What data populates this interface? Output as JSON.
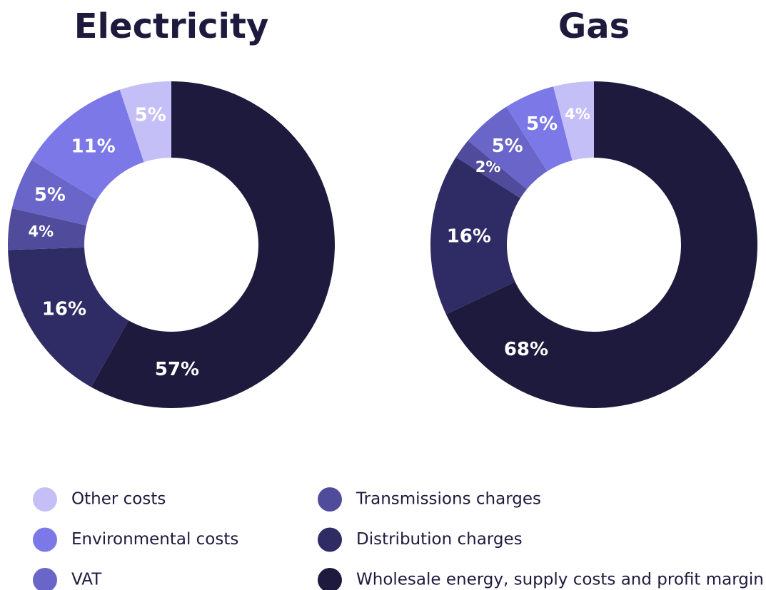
{
  "legend": {
    "labels": [
      "Other costs",
      "Environmental costs",
      "VAT",
      "Transmissions charges",
      "Distribution charges",
      "Wholesale energy, supply costs and profit margin"
    ],
    "colors": [
      "#c4c0f7",
      "#7c78e8",
      "#6a65c8",
      "#514b9c",
      "#2f2b64",
      "#1e1a3d"
    ]
  },
  "chart_data": [
    {
      "type": "pie",
      "title": "Electricity",
      "values": [
        5,
        11,
        5,
        4,
        16,
        57
      ],
      "value_labels": [
        "5%",
        "11%",
        "5%",
        "4%",
        "16%",
        "57%"
      ]
    },
    {
      "type": "pie",
      "title": "Gas",
      "values": [
        4,
        5,
        5,
        2,
        16,
        68
      ],
      "value_labels": [
        "4%",
        "5%",
        "5%",
        "2%",
        "16%",
        "68%"
      ]
    }
  ]
}
